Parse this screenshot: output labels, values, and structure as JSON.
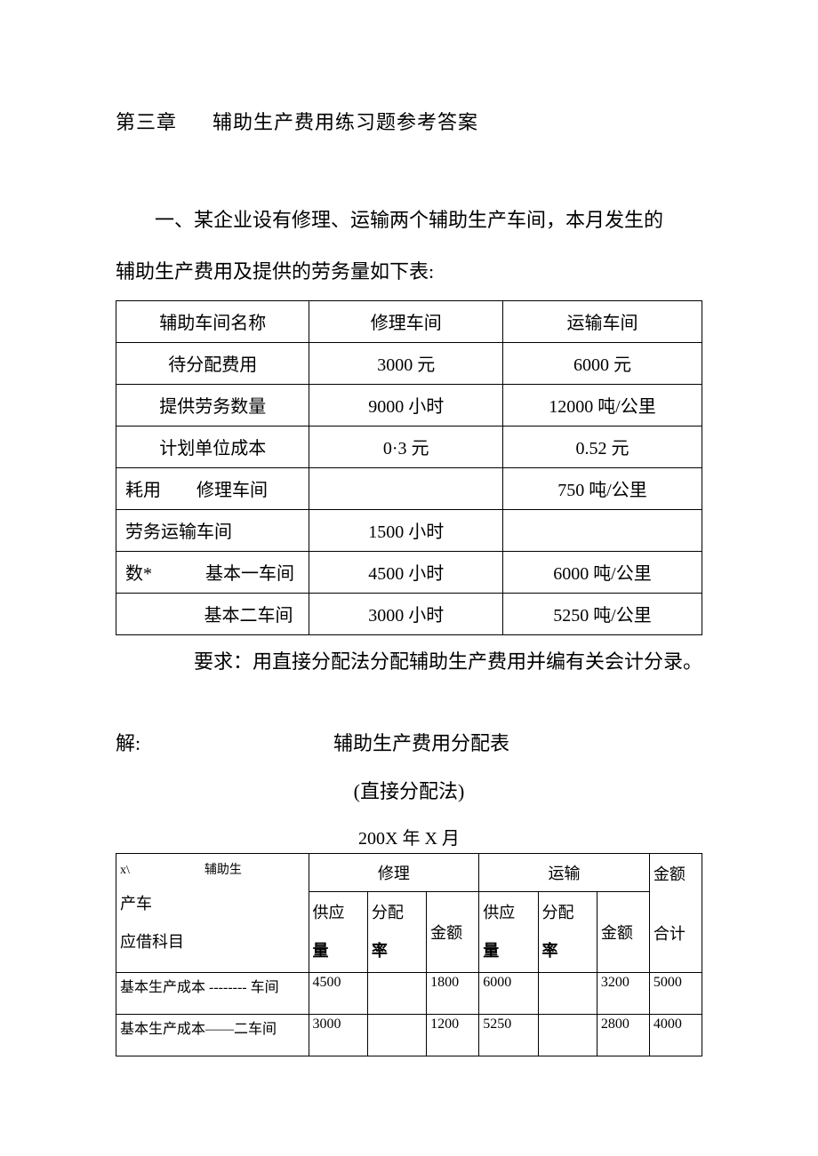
{
  "chapter": {
    "label": "第三章",
    "title": "辅助生产费用练习题参考答案"
  },
  "intro": {
    "line1": "一、某企业设有修理、运输两个辅助生产车间，本月发生的",
    "line2": "辅助生产费用及提供的劳务量如下表:"
  },
  "table1": {
    "headers": [
      "辅助车间名称",
      "修理车间",
      "运输车间"
    ],
    "rows": [
      {
        "label": "待分配费用",
        "repair": "3000 元",
        "transport": "6000 元",
        "label_class": "col-name"
      },
      {
        "label": "提供劳务数量",
        "repair": "9000 小时",
        "transport": "12000 吨/公里",
        "label_class": "col-name"
      },
      {
        "label": "计划单位成本",
        "repair": "0·3 元",
        "transport": "0.52 元",
        "label_class": "col-name"
      },
      {
        "label": "耗用　　修理车间",
        "repair": "",
        "transport": "750 吨/公里",
        "label_class": "left-pad"
      },
      {
        "label": "劳务运输车间",
        "repair": "1500 小时",
        "transport": "",
        "label_class": "left-pad"
      },
      {
        "label": "数*　　　基本一车间",
        "repair": "4500 小时",
        "transport": "6000 吨/公里",
        "label_class": "left-pad"
      },
      {
        "label": "基本二车间",
        "repair": "3000 小时",
        "transport": "5250 吨/公里",
        "label_class": "right-align"
      }
    ]
  },
  "requirement": "要求：用直接分配法分配辅助生产费用并编有关会计分录。",
  "solution": {
    "label": "解:",
    "title": "辅助生产费用分配表",
    "method": "(直接分配法)",
    "date": "200X 年 X 月"
  },
  "table2": {
    "header": {
      "subject_line1": "x\\　　　　　　辅助生",
      "subject_line2": "产车",
      "subject_line3": "应借科目",
      "repair_group": "修理",
      "transport_group": "运输",
      "amount_total_line1": "金额",
      "amount_total_line2": "合计",
      "supply_line1": "供应",
      "supply_line2": "量",
      "rate_line1": "分配",
      "rate_line2": "率",
      "amount": "金额"
    },
    "rows": [
      {
        "subject": "基本生产成本 -------- 车间",
        "r_supply": "4500",
        "r_rate": "",
        "r_amount": "1800",
        "t_supply": "6000",
        "t_rate": "",
        "t_amount": "3200",
        "total": "5000"
      },
      {
        "subject": "基本生产成本——二车间",
        "r_supply": "3000",
        "r_rate": "",
        "r_amount": "1200",
        "t_supply": "5250",
        "t_rate": "",
        "t_amount": "2800",
        "total": "4000"
      }
    ]
  },
  "colors": {
    "text": "#000000",
    "background": "#ffffff",
    "border": "#000000"
  }
}
